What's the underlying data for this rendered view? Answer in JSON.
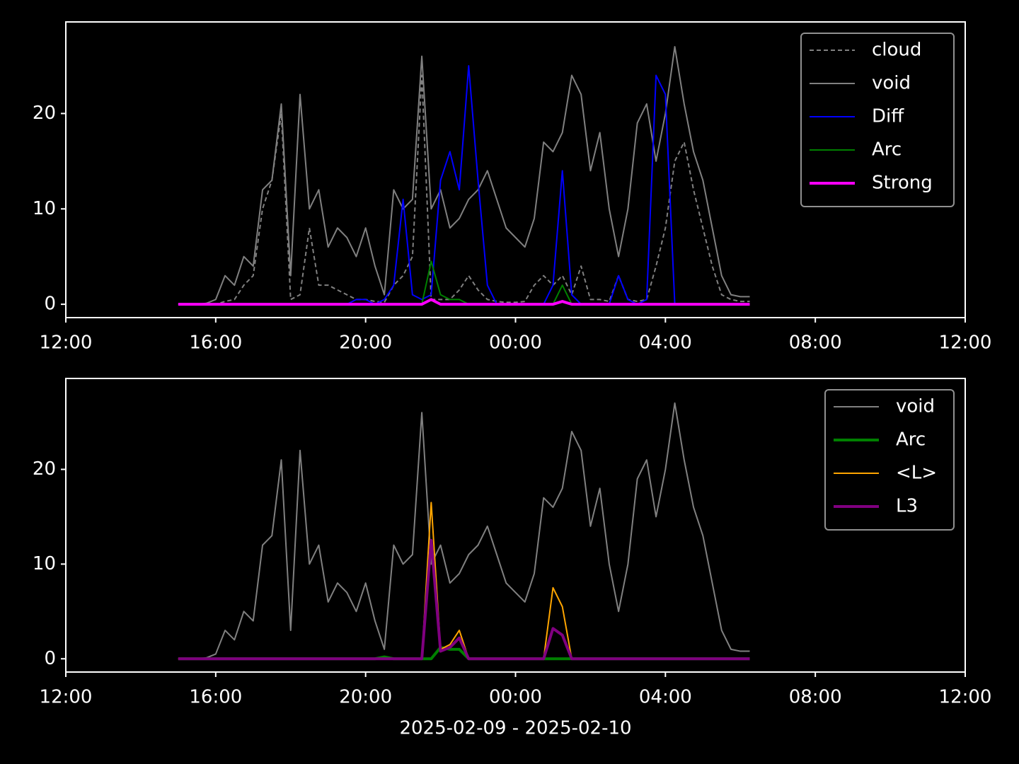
{
  "chart_data": [
    {
      "type": "line",
      "x": [
        15,
        15.25,
        15.5,
        15.75,
        16,
        16.25,
        16.5,
        16.75,
        17,
        17.25,
        17.5,
        17.75,
        18,
        18.25,
        18.5,
        18.75,
        19,
        19.25,
        19.5,
        19.75,
        20,
        20.25,
        20.5,
        20.75,
        21,
        21.25,
        21.5,
        21.75,
        22,
        22.25,
        22.5,
        22.75,
        23,
        23.25,
        23.5,
        23.75,
        24,
        24.25,
        24.5,
        24.75,
        25,
        25.25,
        25.5,
        25.75,
        26,
        26.25,
        26.5,
        26.75,
        27,
        27.25,
        27.5,
        27.75,
        28,
        28.25,
        28.5,
        28.75,
        29,
        29.25,
        29.5,
        29.75,
        30,
        30.25
      ],
      "series": [
        {
          "name": "cloud",
          "color": "#808080",
          "linestyle": "dashed",
          "linewidth": 2,
          "values": [
            0,
            0,
            0,
            0,
            0,
            0.3,
            0.5,
            2,
            3,
            10,
            13,
            20,
            0.5,
            1,
            8,
            2,
            2,
            1.5,
            1,
            0.5,
            0.5,
            0.3,
            0.2,
            2,
            3,
            5,
            24,
            0.5,
            0.5,
            0.5,
            1.5,
            3,
            1.5,
            0.5,
            0.3,
            0.2,
            0.2,
            0.3,
            2,
            3,
            2,
            3,
            1,
            4,
            0.5,
            0.5,
            0.3,
            3,
            0.5,
            0.3,
            0.5,
            4,
            8,
            15,
            17,
            12,
            8,
            4,
            1,
            0.5,
            0.3,
            0.3
          ]
        },
        {
          "name": "void",
          "color": "#808080",
          "linestyle": "solid",
          "linewidth": 2,
          "values": [
            0,
            0,
            0,
            0.1,
            0.5,
            3,
            2,
            5,
            4,
            12,
            13,
            21,
            3,
            22,
            10,
            12,
            6,
            8,
            7,
            5,
            8,
            4,
            1,
            12,
            10,
            11,
            26,
            10,
            12,
            8,
            9,
            11,
            12,
            14,
            11,
            8,
            7,
            6,
            9,
            17,
            16,
            18,
            24,
            22,
            14,
            18,
            10,
            5,
            10,
            19,
            21,
            15,
            20,
            27,
            21,
            16,
            13,
            8,
            3,
            1,
            0.8,
            0.8
          ]
        },
        {
          "name": "Diff",
          "color": "#0000ff",
          "linestyle": "solid",
          "linewidth": 2,
          "values": [
            0,
            0,
            0,
            0,
            0,
            0,
            0,
            0,
            0,
            0,
            0,
            0,
            0,
            0,
            0,
            0,
            0,
            0,
            0,
            0.5,
            0.5,
            0,
            0.5,
            2,
            11,
            1,
            0.5,
            1,
            13,
            16,
            12,
            25,
            13,
            2,
            0,
            0,
            0,
            0,
            0,
            0,
            2,
            14,
            1,
            0,
            0,
            0,
            0,
            3,
            0.5,
            0,
            0.5,
            24,
            22,
            0,
            0,
            0,
            0,
            0,
            0,
            0,
            0,
            0
          ]
        },
        {
          "name": "Arc",
          "color": "#008000",
          "linestyle": "solid",
          "linewidth": 2,
          "values": [
            0,
            0,
            0,
            0,
            0,
            0,
            0,
            0,
            0,
            0,
            0,
            0,
            0,
            0,
            0,
            0,
            0,
            0,
            0,
            0,
            0,
            0,
            0,
            0,
            0,
            0,
            0,
            4.5,
            1,
            0.5,
            0.5,
            0,
            0,
            0,
            0,
            0,
            0,
            0,
            0,
            0,
            0,
            2,
            0,
            0,
            0,
            0,
            0,
            0,
            0,
            0,
            0,
            0,
            0,
            0,
            0,
            0,
            0,
            0,
            0,
            0,
            0,
            0
          ]
        },
        {
          "name": "Strong",
          "color": "#ff00ff",
          "linestyle": "solid",
          "linewidth": 4,
          "values": [
            0,
            0,
            0,
            0,
            0,
            0,
            0,
            0,
            0,
            0,
            0,
            0,
            0,
            0,
            0,
            0,
            0,
            0,
            0,
            0,
            0,
            0,
            0,
            0,
            0,
            0,
            0,
            0.5,
            0,
            0,
            0,
            0,
            0,
            0,
            0,
            0,
            0,
            0,
            0,
            0,
            0,
            0.3,
            0,
            0,
            0,
            0,
            0,
            0,
            0,
            0,
            0,
            0,
            0,
            0,
            0,
            0,
            0,
            0,
            0,
            0,
            0,
            0
          ]
        }
      ],
      "xlim": [
        12,
        36
      ],
      "xticks": [
        {
          "value": 12,
          "label": "12:00"
        },
        {
          "value": 16,
          "label": "16:00"
        },
        {
          "value": 20,
          "label": "20:00"
        },
        {
          "value": 24,
          "label": "00:00"
        },
        {
          "value": 28,
          "label": "04:00"
        },
        {
          "value": 32,
          "label": "08:00"
        },
        {
          "value": 36,
          "label": "12:00"
        }
      ],
      "ylim": [
        -1.4,
        29.6
      ],
      "yticks": [
        0,
        10,
        20
      ],
      "legend": "upper right"
    },
    {
      "type": "line",
      "x": [
        15,
        15.25,
        15.5,
        15.75,
        16,
        16.25,
        16.5,
        16.75,
        17,
        17.25,
        17.5,
        17.75,
        18,
        18.25,
        18.5,
        18.75,
        19,
        19.25,
        19.5,
        19.75,
        20,
        20.25,
        20.5,
        20.75,
        21,
        21.25,
        21.5,
        21.75,
        22,
        22.25,
        22.5,
        22.75,
        23,
        23.25,
        23.5,
        23.75,
        24,
        24.25,
        24.5,
        24.75,
        25,
        25.25,
        25.5,
        25.75,
        26,
        26.25,
        26.5,
        26.75,
        27,
        27.25,
        27.5,
        27.75,
        28,
        28.25,
        28.5,
        28.75,
        29,
        29.25,
        29.5,
        29.75,
        30,
        30.25
      ],
      "series": [
        {
          "name": "void",
          "color": "#808080",
          "linestyle": "solid",
          "linewidth": 2,
          "values": [
            0,
            0,
            0,
            0.1,
            0.5,
            3,
            2,
            5,
            4,
            12,
            13,
            21,
            3,
            22,
            10,
            12,
            6,
            8,
            7,
            5,
            8,
            4,
            1,
            12,
            10,
            11,
            26,
            10,
            12,
            8,
            9,
            11,
            12,
            14,
            11,
            8,
            7,
            6,
            9,
            17,
            16,
            18,
            24,
            22,
            14,
            18,
            10,
            5,
            10,
            19,
            21,
            15,
            20,
            27,
            21,
            16,
            13,
            8,
            3,
            1,
            0.8,
            0.8
          ]
        },
        {
          "name": "Arc",
          "color": "#008000",
          "linestyle": "solid",
          "linewidth": 4,
          "values": [
            0,
            0,
            0,
            0,
            0,
            0,
            0,
            0,
            0,
            0,
            0,
            0,
            0,
            0,
            0,
            0,
            0,
            0,
            0,
            0,
            0,
            0,
            0.2,
            0,
            0,
            0,
            0,
            0,
            1.2,
            1,
            1,
            0,
            0,
            0,
            0,
            0,
            0,
            0,
            0,
            0,
            0,
            0,
            0,
            0,
            0,
            0,
            0,
            0,
            0,
            0,
            0,
            0,
            0,
            0,
            0,
            0,
            0,
            0,
            0,
            0,
            0,
            0
          ]
        },
        {
          "name": "<L>",
          "color": "#ffa500",
          "linestyle": "solid",
          "linewidth": 2,
          "values": [
            0,
            0,
            0,
            0,
            0,
            0,
            0,
            0,
            0,
            0,
            0,
            0,
            0,
            0,
            0,
            0,
            0,
            0,
            0,
            0,
            0,
            0,
            0,
            0,
            0,
            0,
            0,
            16.5,
            1,
            1.5,
            3,
            0,
            0,
            0,
            0,
            0,
            0,
            0,
            0,
            0,
            7.5,
            5.5,
            0,
            0,
            0,
            0,
            0,
            0,
            0,
            0,
            0,
            0,
            0,
            0,
            0,
            0,
            0,
            0,
            0,
            0,
            0,
            0
          ]
        },
        {
          "name": "L3",
          "color": "#800080",
          "linestyle": "solid",
          "linewidth": 4,
          "values": [
            0,
            0,
            0,
            0,
            0,
            0,
            0,
            0,
            0,
            0,
            0,
            0,
            0,
            0,
            0,
            0,
            0,
            0,
            0,
            0,
            0,
            0,
            0,
            0,
            0,
            0,
            0,
            12.5,
            0.8,
            1.2,
            2.2,
            0,
            0,
            0,
            0,
            0,
            0,
            0,
            0,
            0,
            3.2,
            2.5,
            0,
            0,
            0,
            0,
            0,
            0,
            0,
            0,
            0,
            0,
            0,
            0,
            0,
            0,
            0,
            0,
            0,
            0,
            0,
            0
          ]
        }
      ],
      "xlim": [
        12,
        36
      ],
      "xticks": [
        {
          "value": 12,
          "label": "12:00"
        },
        {
          "value": 16,
          "label": "16:00"
        },
        {
          "value": 20,
          "label": "20:00"
        },
        {
          "value": 24,
          "label": "00:00"
        },
        {
          "value": 28,
          "label": "04:00"
        },
        {
          "value": 32,
          "label": "08:00"
        },
        {
          "value": 36,
          "label": "12:00"
        }
      ],
      "ylim": [
        -1.4,
        29.6
      ],
      "yticks": [
        0,
        10,
        20
      ],
      "x_label": "2025-02-09 - 2025-02-10",
      "legend": "upper right"
    }
  ]
}
